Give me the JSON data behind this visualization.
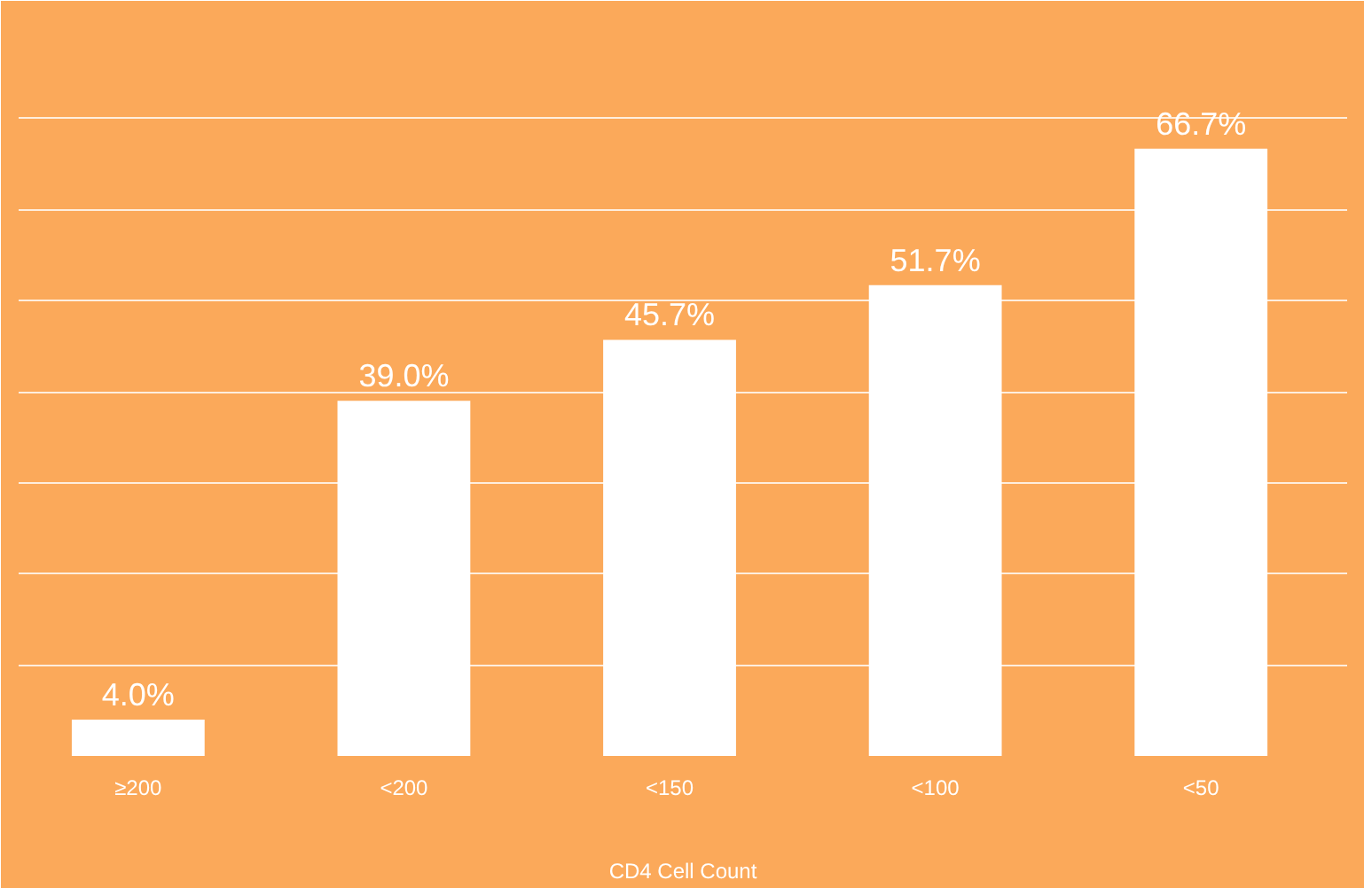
{
  "chart_data": {
    "type": "bar",
    "xlabel": "CD4 Cell Count",
    "categories": [
      "≥200",
      "<200",
      "<150",
      "<100",
      "<50"
    ],
    "values": [
      4.0,
      39.0,
      45.7,
      51.7,
      66.7
    ],
    "value_labels": [
      "4.0%",
      "39.0%",
      "45.7%",
      "51.7%",
      "66.7%"
    ],
    "color": "#ffffff",
    "ylim": [
      0,
      80
    ],
    "yticks": [
      {
        "value": 0,
        "label": null
      },
      {
        "value": 10,
        "label": null
      },
      {
        "value": 20,
        "label": null
      },
      {
        "value": 30,
        "label": null
      },
      {
        "value": 40,
        "label": null
      },
      {
        "value": 50,
        "label": null
      },
      {
        "value": 60,
        "label": null
      },
      {
        "value": 70,
        "label": null
      },
      {
        "value": 80,
        "label": null
      }
    ],
    "grid": "y",
    "tick_labels": "x"
  }
}
